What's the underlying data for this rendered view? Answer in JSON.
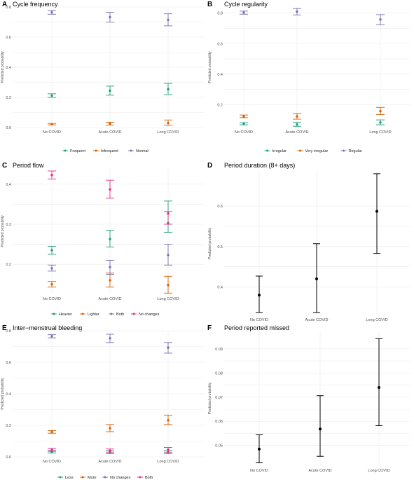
{
  "chart_data": [
    {
      "panel": "A",
      "title": "Cycle frequency",
      "type": "scatter",
      "categories": [
        "No COVID",
        "Acute COVID",
        "Long COVID"
      ],
      "ylabel": "Predicted probability",
      "ylim": [
        0,
        0.8
      ],
      "yticks": [
        0.0,
        0.2,
        0.4,
        0.6,
        0.8
      ],
      "ytick_labels": [
        "0.0",
        "0.2",
        "0.4",
        "0.6",
        "0.8"
      ],
      "legend_position": "bottom",
      "series": [
        {
          "name": "Frequent",
          "color": "#1b9e77",
          "values": [
            0.212,
            0.245,
            0.255
          ],
          "lower": [
            0.2,
            0.215,
            0.218
          ],
          "upper": [
            0.224,
            0.275,
            0.293
          ]
        },
        {
          "name": "Infrequent",
          "color": "#d95f02",
          "values": [
            0.022,
            0.025,
            0.03
          ],
          "lower": [
            0.018,
            0.016,
            0.015
          ],
          "upper": [
            0.027,
            0.035,
            0.05
          ]
        },
        {
          "name": "Normal",
          "color": "#7570b3",
          "values": [
            0.765,
            0.733,
            0.715
          ],
          "lower": [
            0.752,
            0.7,
            0.675
          ],
          "upper": [
            0.778,
            0.765,
            0.755
          ]
        }
      ]
    },
    {
      "panel": "B",
      "title": "Cycle regularity",
      "type": "scatter",
      "categories": [
        "No COVID",
        "Acute COVID",
        "Long COVID"
      ],
      "ylabel": "Predicted probability",
      "ylim": [
        0.05,
        0.84
      ],
      "yticks": [
        0.2,
        0.4,
        0.6,
        0.8
      ],
      "ytick_labels": [
        "0.2",
        "0.4",
        "0.6",
        "0.8"
      ],
      "legend_position": "bottom",
      "series": [
        {
          "name": "Irregular",
          "color": "#1b9e77",
          "values": [
            0.075,
            0.07,
            0.083
          ],
          "lower": [
            0.068,
            0.058,
            0.068
          ],
          "upper": [
            0.082,
            0.083,
            0.1
          ]
        },
        {
          "name": "Very irregular",
          "color": "#d95f02",
          "values": [
            0.123,
            0.123,
            0.157
          ],
          "lower": [
            0.115,
            0.105,
            0.135
          ],
          "upper": [
            0.132,
            0.143,
            0.182
          ]
        },
        {
          "name": "Regular",
          "color": "#7570b3",
          "values": [
            0.803,
            0.81,
            0.758
          ],
          "lower": [
            0.793,
            0.788,
            0.723
          ],
          "upper": [
            0.813,
            0.83,
            0.79
          ]
        }
      ]
    },
    {
      "panel": "C",
      "title": "Period flow",
      "type": "scatter",
      "categories": [
        "No COVID",
        "Acute COVID",
        "Long COVID"
      ],
      "ylabel": "Predicted probability",
      "ylim": [
        0.125,
        0.44
      ],
      "yticks": [
        0.2,
        0.3,
        0.4
      ],
      "ytick_labels": [
        "0.2",
        "0.3",
        "0.4"
      ],
      "legend_position": "bottom",
      "series": [
        {
          "name": "Heavier",
          "color": "#1b9e77",
          "values": [
            0.235,
            0.263,
            0.303
          ],
          "lower": [
            0.225,
            0.243,
            0.28
          ],
          "upper": [
            0.245,
            0.285,
            0.358
          ]
        },
        {
          "name": "Lighter",
          "color": "#d95f02",
          "values": [
            0.15,
            0.16,
            0.148
          ],
          "lower": [
            0.143,
            0.143,
            0.128
          ],
          "upper": [
            0.157,
            0.178,
            0.17
          ]
        },
        {
          "name": "Both",
          "color": "#7570b3",
          "values": [
            0.19,
            0.193,
            0.223
          ],
          "lower": [
            0.183,
            0.175,
            0.198
          ],
          "upper": [
            0.198,
            0.21,
            0.25
          ]
        },
        {
          "name": "No changes",
          "color": "#e7298a",
          "values": [
            0.423,
            0.387,
            0.327
          ],
          "lower": [
            0.413,
            0.365,
            0.3
          ],
          "upper": [
            0.433,
            0.41,
            0.332
          ]
        }
      ]
    },
    {
      "panel": "D",
      "title": "Period duration (8+ days)",
      "type": "scatter",
      "categories": [
        "No COVID",
        "Acute COVID",
        "Long COVID"
      ],
      "ylabel": "Predicted probability",
      "ylim": [
        0.33,
        0.685
      ],
      "yticks": [
        0.4,
        0.5,
        0.6
      ],
      "ytick_labels": [
        "0.4",
        "0.5",
        "0.6"
      ],
      "series": [
        {
          "color": "#000000",
          "values": [
            0.38,
            0.42,
            0.587
          ],
          "lower": [
            0.337,
            0.337,
            0.483
          ],
          "upper": [
            0.427,
            0.507,
            0.68
          ]
        }
      ]
    },
    {
      "panel": "E",
      "title": "Inter−menstrual bleeding",
      "type": "scatter",
      "categories": [
        "No COVID",
        "Acute COVID",
        "Long COVID"
      ],
      "ylabel": "Predicted probability",
      "ylim": [
        0,
        0.8
      ],
      "yticks": [
        0.0,
        0.2,
        0.4,
        0.6,
        0.8
      ],
      "ytick_labels": [
        "0.0",
        "0.2",
        "0.4",
        "0.6",
        "0.8"
      ],
      "legend_position": "bottom",
      "series": [
        {
          "name": "Less",
          "color": "#1b9e77",
          "values": [
            0.03,
            0.03,
            0.03
          ],
          "lower": [
            0.025,
            0.02,
            0.02
          ],
          "upper": [
            0.035,
            0.04,
            0.04
          ]
        },
        {
          "name": "More",
          "color": "#d95f02",
          "values": [
            0.158,
            0.182,
            0.232
          ],
          "lower": [
            0.15,
            0.16,
            0.205
          ],
          "upper": [
            0.167,
            0.205,
            0.265
          ]
        },
        {
          "name": "No changes",
          "color": "#7570b3",
          "values": [
            0.765,
            0.752,
            0.693
          ],
          "lower": [
            0.755,
            0.725,
            0.658
          ],
          "upper": [
            0.775,
            0.778,
            0.725
          ]
        },
        {
          "name": "Both",
          "color": "#e7298a",
          "values": [
            0.047,
            0.04,
            0.045
          ],
          "lower": [
            0.04,
            0.03,
            0.03
          ],
          "upper": [
            0.053,
            0.05,
            0.06
          ]
        }
      ]
    },
    {
      "panel": "F",
      "title": "Period reported missed",
      "type": "scatter",
      "categories": [
        "No COVID",
        "Acute COVID",
        "Long COVID"
      ],
      "ylabel": "Predicted probability",
      "ylim": [
        0.0415,
        0.0975
      ],
      "yticks": [
        0.05,
        0.06,
        0.07,
        0.08,
        0.09
      ],
      "ytick_labels": [
        "0.05",
        "0.06",
        "0.07",
        "0.08",
        "0.09"
      ],
      "series": [
        {
          "color": "#000000",
          "values": [
            0.0485,
            0.0568,
            0.074
          ],
          "lower": [
            0.0428,
            0.0455,
            0.0582
          ],
          "upper": [
            0.0544,
            0.0706,
            0.0942
          ]
        }
      ]
    }
  ]
}
